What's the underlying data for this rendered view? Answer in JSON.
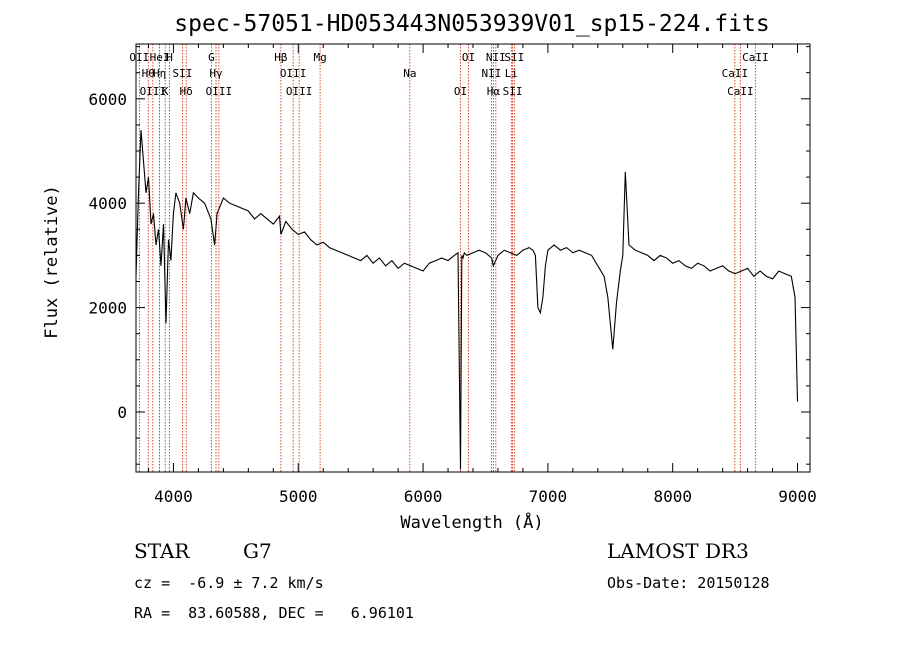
{
  "chart_data": {
    "type": "line",
    "title": "spec-57051-HD053443N053939V01_sp15-224.fits",
    "xlabel": "Wavelength (Å)",
    "ylabel": "Flux (relative)",
    "xlim": [
      3700,
      9100
    ],
    "ylim": [
      -1150,
      7050
    ],
    "xticks": [
      4000,
      5000,
      6000,
      7000,
      8000,
      9000
    ],
    "yticks": [
      0,
      2000,
      4000,
      6000
    ],
    "grid": false,
    "line_color": "#000000",
    "marker_color": "#cc2200",
    "series": [
      {
        "x": [
          3700,
          3720,
          3740,
          3760,
          3780,
          3800,
          3820,
          3840,
          3860,
          3880,
          3900,
          3920,
          3940,
          3960,
          3980,
          4000,
          4020,
          4050,
          4080,
          4100,
          4130,
          4160,
          4200,
          4250,
          4300,
          4330,
          4350,
          4400,
          4450,
          4500,
          4550,
          4600,
          4650,
          4700,
          4750,
          4800,
          4850,
          4861,
          4900,
          4950,
          5000,
          5050,
          5100,
          5150,
          5200,
          5250,
          5300,
          5350,
          5400,
          5450,
          5500,
          5550,
          5600,
          5650,
          5700,
          5750,
          5800,
          5850,
          5900,
          5950,
          6000,
          6050,
          6100,
          6150,
          6200,
          6250,
          6280,
          6300,
          6310,
          6320,
          6330,
          6350,
          6400,
          6450,
          6500,
          6550,
          6563,
          6600,
          6650,
          6700,
          6750,
          6800,
          6850,
          6880,
          6900,
          6920,
          6940,
          6960,
          6980,
          7000,
          7050,
          7100,
          7150,
          7200,
          7250,
          7300,
          7350,
          7400,
          7450,
          7480,
          7500,
          7520,
          7550,
          7580,
          7600,
          7620,
          7650,
          7700,
          7750,
          7800,
          7850,
          7900,
          7950,
          8000,
          8050,
          8100,
          8150,
          8200,
          8250,
          8300,
          8350,
          8400,
          8450,
          8500,
          8550,
          8600,
          8650,
          8700,
          8750,
          8800,
          8850,
          8900,
          8950,
          8980,
          9000
        ],
        "y": [
          2600,
          4200,
          5400,
          4800,
          4200,
          4500,
          3600,
          3800,
          3200,
          3500,
          2800,
          3600,
          1700,
          3300,
          2900,
          3800,
          4200,
          4000,
          3500,
          4100,
          3800,
          4200,
          4100,
          4000,
          3700,
          3200,
          3800,
          4100,
          4000,
          3950,
          3900,
          3850,
          3700,
          3800,
          3700,
          3600,
          3750,
          3400,
          3650,
          3500,
          3400,
          3450,
          3300,
          3200,
          3250,
          3150,
          3100,
          3050,
          3000,
          2950,
          2900,
          3000,
          2850,
          2950,
          2800,
          2900,
          2750,
          2850,
          2800,
          2750,
          2700,
          2850,
          2900,
          2950,
          2900,
          3000,
          3050,
          -1100,
          3000,
          2950,
          3050,
          3000,
          3050,
          3100,
          3050,
          2950,
          2800,
          3000,
          3100,
          3050,
          3000,
          3100,
          3150,
          3100,
          3000,
          2000,
          1900,
          2200,
          2800,
          3100,
          3200,
          3100,
          3150,
          3050,
          3100,
          3050,
          3000,
          2800,
          2600,
          2200,
          1700,
          1200,
          2100,
          2700,
          3000,
          4600,
          3200,
          3100,
          3050,
          3000,
          2900,
          3000,
          2950,
          2850,
          2900,
          2800,
          2750,
          2850,
          2800,
          2700,
          2750,
          2800,
          2700,
          2650,
          2700,
          2750,
          2600,
          2700,
          2600,
          2550,
          2700,
          2650,
          2600,
          2200,
          200
        ]
      }
    ],
    "lines": [
      {
        "name": "OII",
        "x": 3727
      },
      {
        "name": "Hθ",
        "x": 3798
      },
      {
        "name": "OIII",
        "x": 3835
      },
      {
        "name": "HeI",
        "x": 3889
      },
      {
        "name": "Hη",
        "x": 3889
      },
      {
        "name": "K",
        "x": 3934
      },
      {
        "name": "H",
        "x": 3969
      },
      {
        "name": "SII",
        "x": 4072
      },
      {
        "name": "Hδ",
        "x": 4102
      },
      {
        "name": "G",
        "x": 4304
      },
      {
        "name": "Hγ",
        "x": 4341
      },
      {
        "name": "OIII",
        "x": 4364
      },
      {
        "name": "Hβ",
        "x": 4861
      },
      {
        "name": "OIII",
        "x": 4959
      },
      {
        "name": "OIII",
        "x": 5007
      },
      {
        "name": "Mg",
        "x": 5175
      },
      {
        "name": "Na",
        "x": 5894
      },
      {
        "name": "OI",
        "x": 6300
      },
      {
        "name": "OI",
        "x": 6364
      },
      {
        "name": "NII",
        "x": 6548
      },
      {
        "name": "Hα",
        "x": 6563
      },
      {
        "name": "NII",
        "x": 6583
      },
      {
        "name": "Li",
        "x": 6707
      },
      {
        "name": "SII",
        "x": 6717
      },
      {
        "name": "SII",
        "x": 6731
      },
      {
        "name": "CaII",
        "x": 8498
      },
      {
        "name": "CaII",
        "x": 8542
      },
      {
        "name": "CaII",
        "x": 8662
      }
    ]
  },
  "info": {
    "object_class": "STAR",
    "subclass": "G7",
    "survey": "LAMOST DR3",
    "redshift": "cz =  -6.9 ± 7.2 km/s",
    "obs_date": "Obs-Date: 20150128",
    "coords": "RA =  83.60588, DEC =   6.96101"
  }
}
